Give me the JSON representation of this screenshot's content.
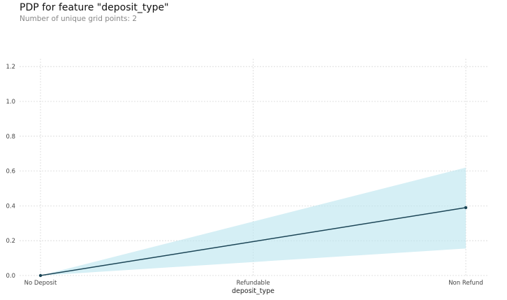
{
  "header": {
    "title": "PDP for feature \"deposit_type\"",
    "subtitle": "Number of unique grid points: 2"
  },
  "chart_data": {
    "type": "line",
    "title": "PDP for feature \"deposit_type\"",
    "subtitle": "Number of unique grid points: 2",
    "xlabel": "deposit_type",
    "ylabel": "",
    "categories": [
      "No Deposit",
      "Refundable",
      "Non Refund"
    ],
    "y_ticks": [
      "0.0",
      "0.2",
      "0.4",
      "0.6",
      "0.8",
      "1.0",
      "1.2"
    ],
    "ylim": [
      0,
      1.24
    ],
    "grid": true,
    "series": [
      {
        "points": [
          {
            "x": "No Deposit",
            "y": 0.0
          },
          {
            "x": "Non Refund",
            "y": 0.39
          }
        ],
        "band_upper": [
          0.0,
          0.62
        ],
        "band_lower": [
          0.0,
          0.155
        ]
      }
    ],
    "colors": {
      "line": "#1b4556",
      "band": "#bfe6ef",
      "grid": "#d8d8d8"
    }
  }
}
